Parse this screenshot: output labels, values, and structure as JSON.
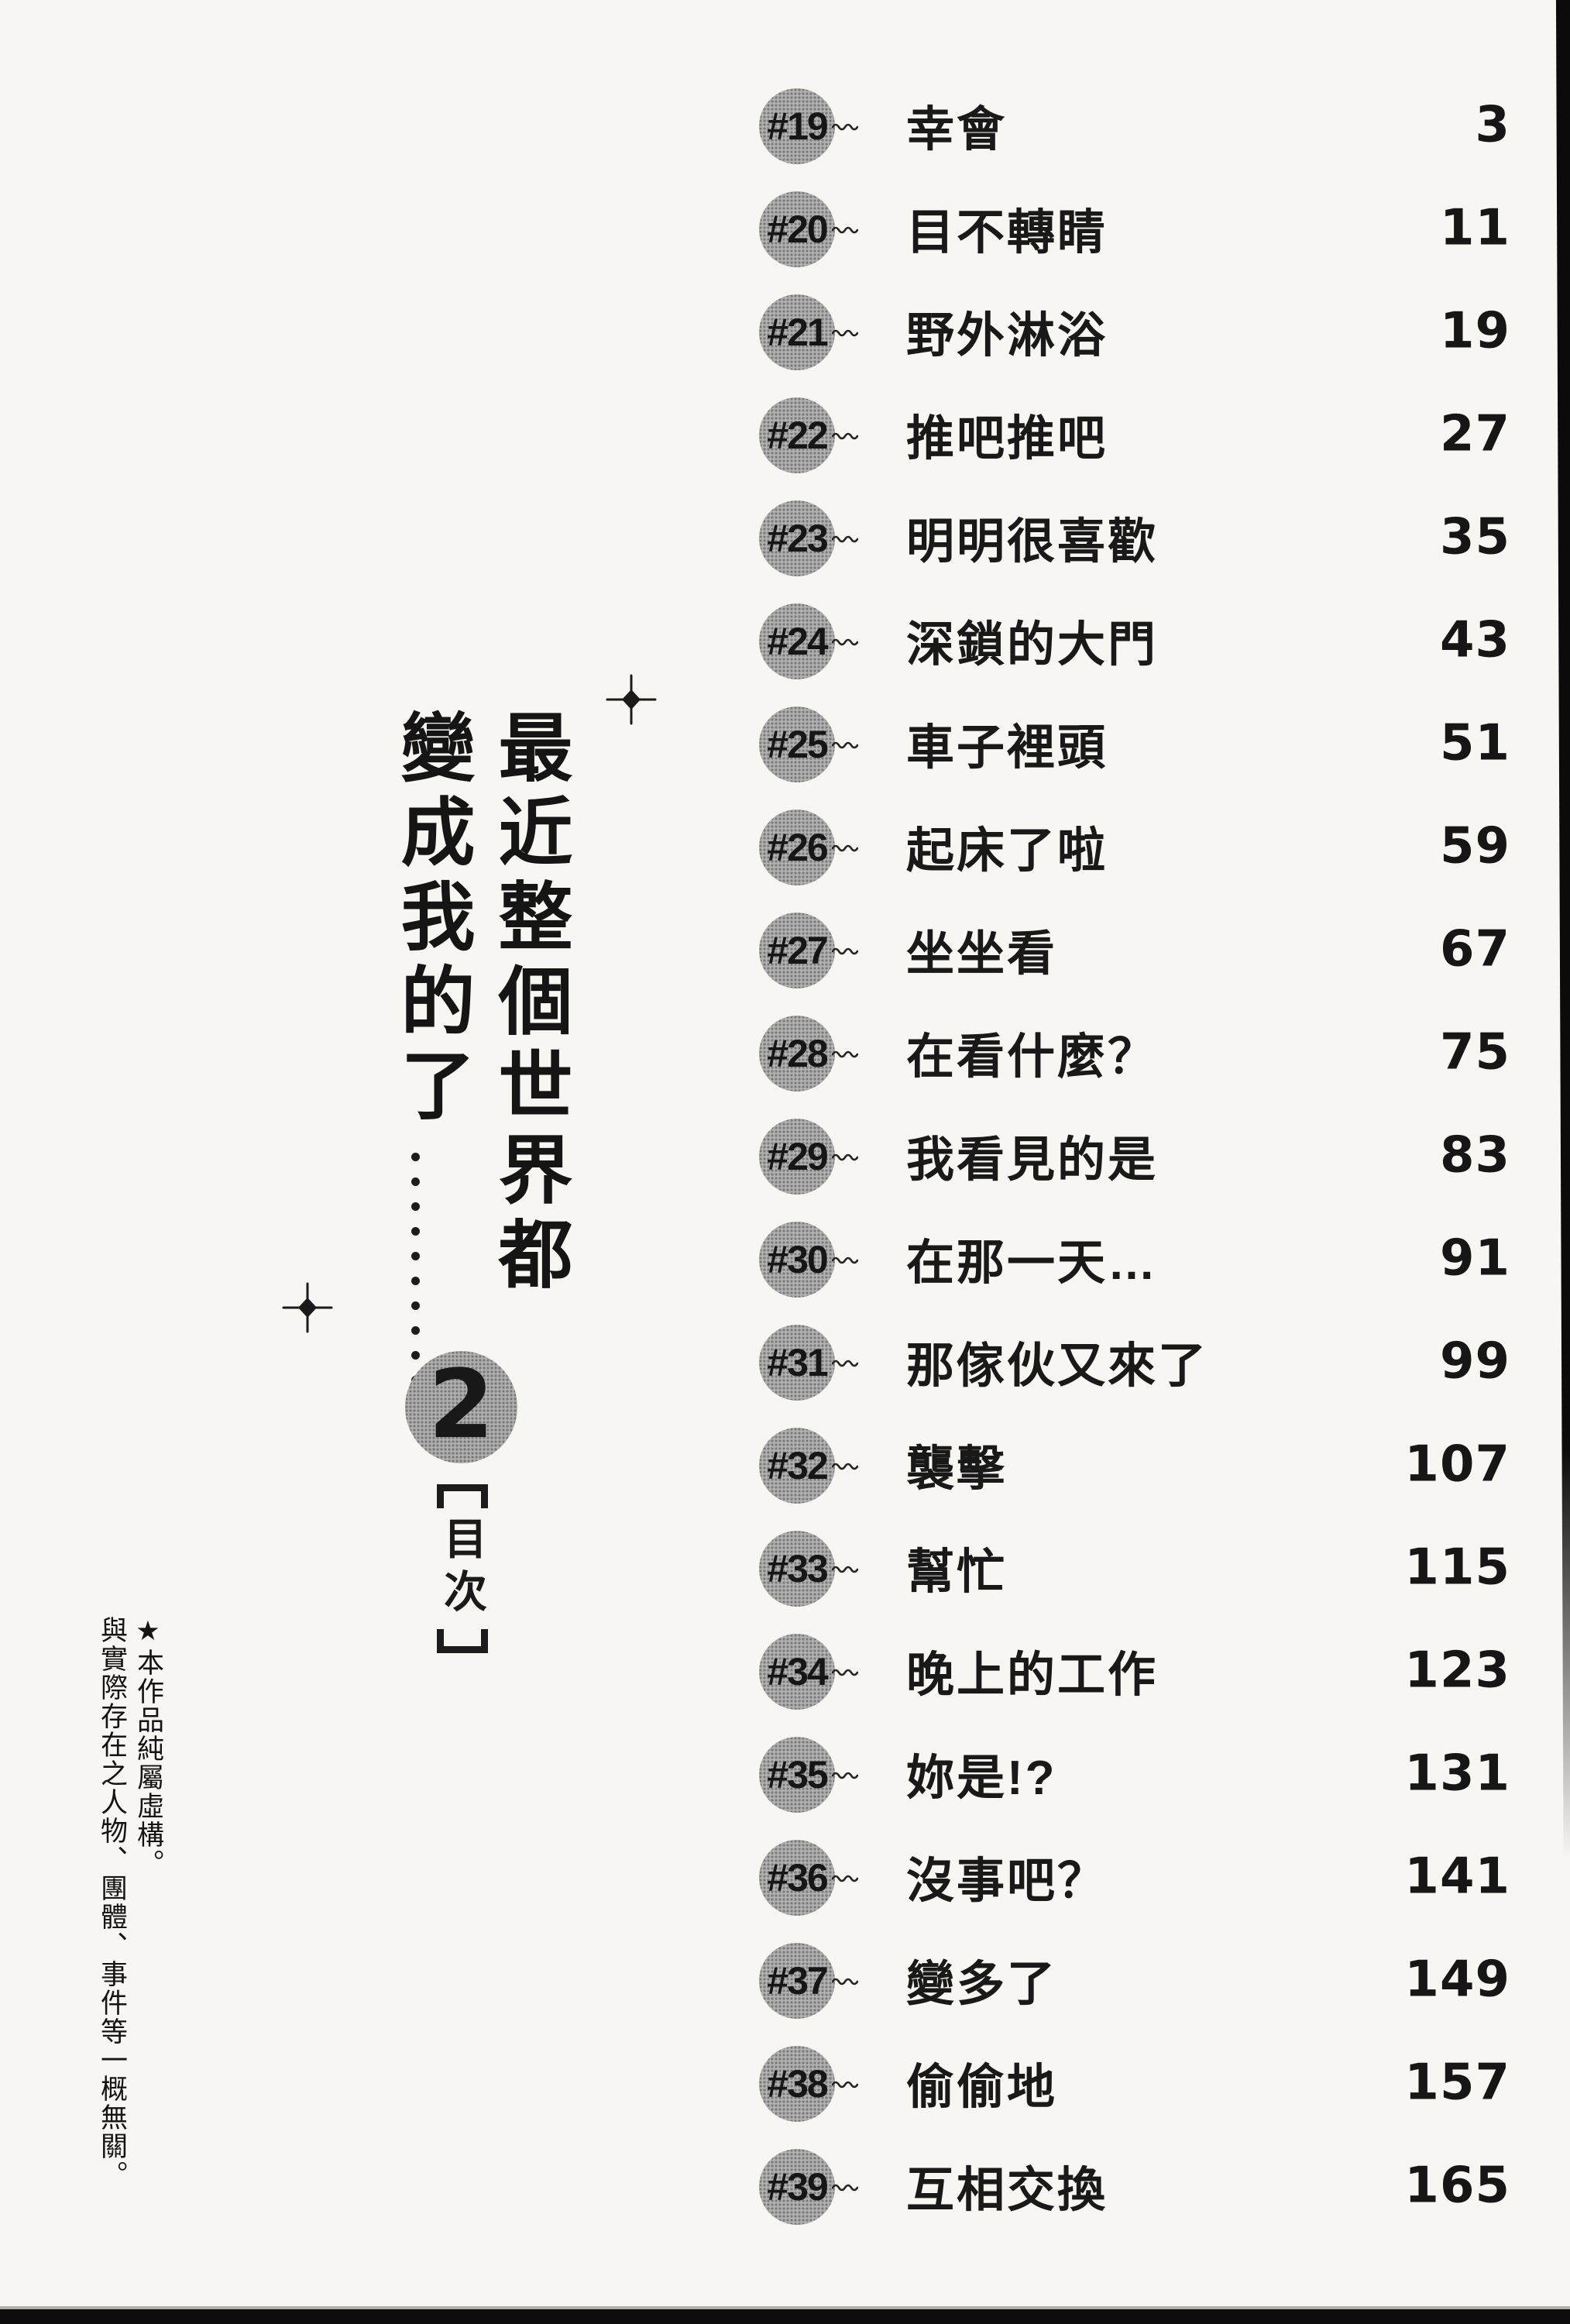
{
  "colors": {
    "paper": "#f7f6f2",
    "ink": "#1c1c1c",
    "halftone_gray": "#a9a9a9",
    "edge_black": "#0d0d0d"
  },
  "title": {
    "line1": "最近整個世界都",
    "line2_text": "變成我的了",
    "line2_ellipsis": "……",
    "full": "最近整個世界都變成我的了……"
  },
  "volume": {
    "number": "2"
  },
  "toc": {
    "label": "目次",
    "bracket_open": "[",
    "bracket_close": "]"
  },
  "disclaimer": {
    "line1": "★本作品純屬虛構。",
    "line2": "與實際存在之人物、團體、事件等一概無關。"
  },
  "chapters": [
    {
      "num": "#19",
      "title": "幸會",
      "page": "3"
    },
    {
      "num": "#20",
      "title": "目不轉睛",
      "page": "11"
    },
    {
      "num": "#21",
      "title": "野外淋浴",
      "page": "19"
    },
    {
      "num": "#22",
      "title": "推吧推吧",
      "page": "27"
    },
    {
      "num": "#23",
      "title": "明明很喜歡",
      "page": "35"
    },
    {
      "num": "#24",
      "title": "深鎖的大門",
      "page": "43"
    },
    {
      "num": "#25",
      "title": "車子裡頭",
      "page": "51"
    },
    {
      "num": "#26",
      "title": "起床了啦",
      "page": "59"
    },
    {
      "num": "#27",
      "title": "坐坐看",
      "page": "67"
    },
    {
      "num": "#28",
      "title": "在看什麼？",
      "page": "75"
    },
    {
      "num": "#29",
      "title": "我看見的是",
      "page": "83"
    },
    {
      "num": "#30",
      "title": "在那一天…",
      "page": "91"
    },
    {
      "num": "#31",
      "title": "那傢伙又來了",
      "page": "99"
    },
    {
      "num": "#32",
      "title": "襲擊",
      "page": "107"
    },
    {
      "num": "#33",
      "title": "幫忙",
      "page": "115"
    },
    {
      "num": "#34",
      "title": "晚上的工作",
      "page": "123"
    },
    {
      "num": "#35",
      "title": "妳是!?",
      "page": "131"
    },
    {
      "num": "#36",
      "title": "沒事吧？",
      "page": "141"
    },
    {
      "num": "#37",
      "title": "變多了",
      "page": "149"
    },
    {
      "num": "#38",
      "title": "偷偷地",
      "page": "157"
    },
    {
      "num": "#39",
      "title": "互相交換",
      "page": "165"
    }
  ]
}
